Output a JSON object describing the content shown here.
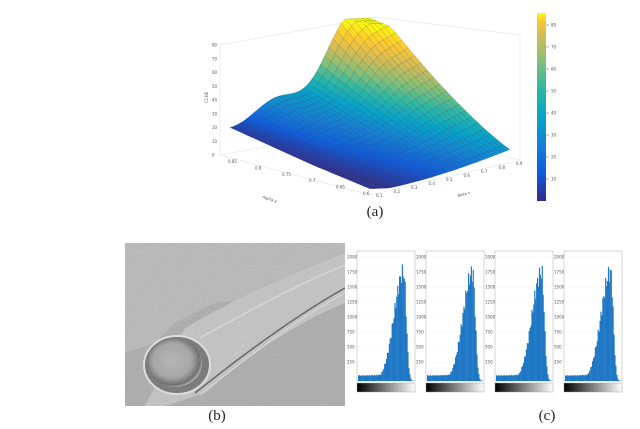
{
  "figure": {
    "panel_a": {
      "caption": "(a)",
      "zlabel": "CCHE",
      "xlabel": "Alpha  a",
      "ylabel": "Beta  τ",
      "z_ticks": [
        "0",
        "10",
        "20",
        "30",
        "40",
        "50",
        "60",
        "70",
        "80"
      ],
      "alpha_ticks": [
        "0.85",
        "0.8",
        "0.75",
        "0.7",
        "0.65",
        "0.6"
      ],
      "beta_ticks": [
        "0.1",
        "0.2",
        "0.3",
        "0.4",
        "0.5",
        "0.6",
        "0.7",
        "0.8",
        "0.9"
      ],
      "colorbar_ticks": [
        "80",
        "70",
        "60",
        "50",
        "40",
        "30",
        "20",
        "10"
      ],
      "colormap": [
        "#352a87",
        "#0f5cdd",
        "#1481d6",
        "#06a4ca",
        "#2eb7a4",
        "#87bf77",
        "#d1bb59",
        "#fec832",
        "#f9fb0e"
      ]
    },
    "panel_b": {
      "caption": "(b)"
    },
    "panel_c": {
      "caption": "(c)",
      "bar_color": "#1f77c4",
      "histograms": [
        {
          "y_ticks": [
            "2000",
            "1750",
            "1500",
            "1250",
            "1000",
            "750",
            "500",
            "250"
          ]
        },
        {
          "y_ticks": [
            "2000",
            "1750",
            "1500",
            "1250",
            "1000",
            "750",
            "500",
            "250"
          ]
        },
        {
          "y_ticks": [
            "2000",
            "1750",
            "1500",
            "1250",
            "1000",
            "750",
            "500",
            "250"
          ]
        },
        {
          "y_ticks": [
            "2000",
            "1750",
            "1500",
            "1250",
            "1000",
            "750",
            "500",
            "250"
          ]
        }
      ]
    }
  }
}
